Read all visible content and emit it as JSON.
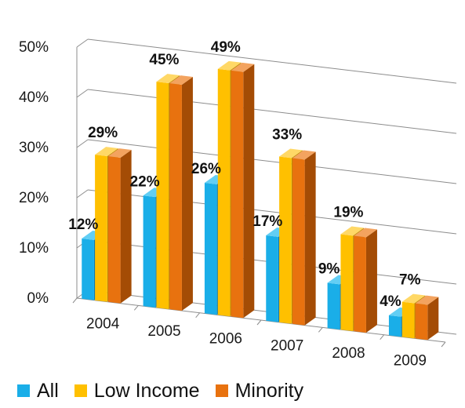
{
  "chart_data": {
    "type": "bar",
    "title": "",
    "xlabel": "",
    "ylabel": "",
    "categories": [
      "2004",
      "2005",
      "2006",
      "2007",
      "2008",
      "2009"
    ],
    "series": [
      {
        "name": "All",
        "values": [
          12,
          22,
          26,
          17,
          9,
          4
        ]
      },
      {
        "name": "Low Income",
        "values": [
          29,
          45,
          49,
          33,
          19,
          7
        ]
      },
      {
        "name": "Minority",
        "values": [
          29,
          45,
          49,
          33,
          19,
          7
        ]
      }
    ],
    "data_labels": [
      {
        "category": "2004",
        "series": "All",
        "text": "12%"
      },
      {
        "category": "2004",
        "series": "Low Income",
        "text": "29%"
      },
      {
        "category": "2005",
        "series": "All",
        "text": "22%"
      },
      {
        "category": "2005",
        "series": "Low Income",
        "text": "45%"
      },
      {
        "category": "2006",
        "series": "All",
        "text": "26%"
      },
      {
        "category": "2006",
        "series": "Low Income",
        "text": "49%"
      },
      {
        "category": "2007",
        "series": "All",
        "text": "17%"
      },
      {
        "category": "2007",
        "series": "Low Income",
        "text": "33%"
      },
      {
        "category": "2008",
        "series": "All",
        "text": "9%"
      },
      {
        "category": "2008",
        "series": "Low Income",
        "text": "19%"
      },
      {
        "category": "2009",
        "series": "All",
        "text": "4%"
      },
      {
        "category": "2009",
        "series": "Low Income",
        "text": "7%"
      }
    ],
    "ylim": [
      0,
      50
    ],
    "y_ticks": [
      "0%",
      "10%",
      "20%",
      "30%",
      "40%",
      "50%"
    ],
    "grid": true,
    "three_d": true,
    "legend_position": "bottom",
    "colors": {
      "All": {
        "front": "#1aaee8",
        "top": "#62cef4",
        "side": "#0c7bb0"
      },
      "Low Income": {
        "front": "#ffc000",
        "top": "#ffd866",
        "side": "#bd8a00"
      },
      "Minority": {
        "front": "#e8720f",
        "top": "#f3a35f",
        "side": "#a44c05"
      }
    }
  }
}
